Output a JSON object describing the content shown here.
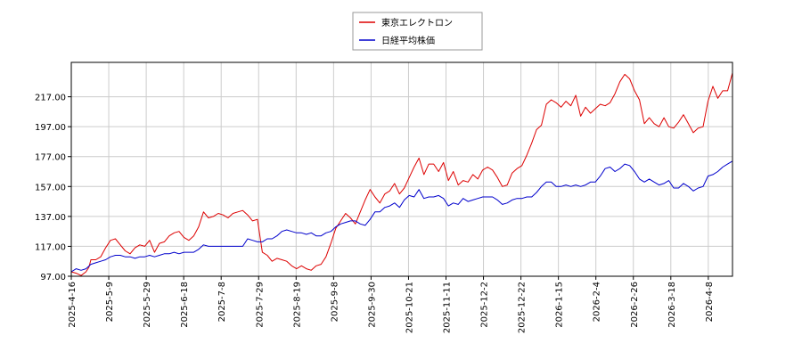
{
  "chart_data": {
    "type": "line",
    "title": "",
    "xlabel": "",
    "ylabel": "",
    "ylim": [
      97,
      240
    ],
    "yticks": [
      "97.00",
      "117.00",
      "137.00",
      "157.00",
      "177.00",
      "197.00",
      "217.00"
    ],
    "xticks": [
      "2025-4-16",
      "2025-5-9",
      "2025-5-29",
      "2025-6-18",
      "2025-7-8",
      "2025-7-29",
      "2025-8-19",
      "2025-9-8",
      "2025-9-30",
      "2025-10-21",
      "2025-11-11",
      "2025-12-2",
      "2025-12-22",
      "2026-1-15",
      "2026-2-4",
      "2026-2-26",
      "2026-3-18",
      "2026-4-8"
    ],
    "grid": true,
    "legend_position": "top-center",
    "series": [
      {
        "name": "東京エレクトロン",
        "color": "#dd0000",
        "points": [
          [
            0,
            100
          ],
          [
            0.5,
            99
          ],
          [
            1.0,
            97.5
          ],
          [
            1.5,
            100
          ],
          [
            1.8,
            103
          ],
          [
            2.0,
            108
          ],
          [
            2.5,
            108
          ],
          [
            3.0,
            110
          ],
          [
            3.5,
            116
          ],
          [
            4.0,
            121
          ],
          [
            4.5,
            122
          ],
          [
            5.0,
            118
          ],
          [
            5.5,
            114
          ],
          [
            6.0,
            112
          ],
          [
            6.5,
            116
          ],
          [
            7.0,
            118
          ],
          [
            7.5,
            117
          ],
          [
            8.0,
            121
          ],
          [
            8.5,
            113
          ],
          [
            9.0,
            119
          ],
          [
            9.5,
            120
          ],
          [
            10.0,
            124
          ],
          [
            10.5,
            126
          ],
          [
            11.0,
            127
          ],
          [
            11.5,
            123
          ],
          [
            12.0,
            121
          ],
          [
            12.5,
            124
          ],
          [
            13.0,
            130
          ],
          [
            13.5,
            140
          ],
          [
            14.0,
            136
          ],
          [
            14.5,
            137
          ],
          [
            15.0,
            139
          ],
          [
            15.5,
            138
          ],
          [
            16.0,
            136
          ],
          [
            16.5,
            139
          ],
          [
            17.0,
            140
          ],
          [
            17.5,
            141
          ],
          [
            18.0,
            138
          ],
          [
            18.5,
            134
          ],
          [
            19.0,
            135
          ],
          [
            19.5,
            113
          ],
          [
            20.0,
            111
          ],
          [
            20.5,
            107
          ],
          [
            21.0,
            109
          ],
          [
            21.5,
            108
          ],
          [
            22.0,
            107
          ],
          [
            22.5,
            104
          ],
          [
            23.0,
            102
          ],
          [
            23.5,
            104
          ],
          [
            24.0,
            102
          ],
          [
            24.5,
            101
          ],
          [
            25.0,
            104
          ],
          [
            25.5,
            105
          ],
          [
            26.0,
            110
          ],
          [
            26.5,
            119
          ],
          [
            27.0,
            129
          ],
          [
            27.5,
            134
          ],
          [
            28.0,
            139
          ],
          [
            28.5,
            136
          ],
          [
            29.0,
            132
          ],
          [
            29.5,
            140
          ],
          [
            30.0,
            148
          ],
          [
            30.5,
            155
          ],
          [
            31.0,
            150
          ],
          [
            31.5,
            146
          ],
          [
            32.0,
            152
          ],
          [
            32.5,
            154
          ],
          [
            33.0,
            159
          ],
          [
            33.5,
            152
          ],
          [
            34.0,
            156
          ],
          [
            34.5,
            163
          ],
          [
            35.0,
            170
          ],
          [
            35.5,
            176
          ],
          [
            36.0,
            165
          ],
          [
            36.5,
            172
          ],
          [
            37.0,
            172
          ],
          [
            37.5,
            167
          ],
          [
            38.0,
            173
          ],
          [
            38.5,
            161
          ],
          [
            39.0,
            167
          ],
          [
            39.5,
            158
          ],
          [
            40.0,
            161
          ],
          [
            40.5,
            160
          ],
          [
            41.0,
            165
          ],
          [
            41.5,
            162
          ],
          [
            42.0,
            168
          ],
          [
            42.5,
            170
          ],
          [
            43.0,
            168
          ],
          [
            43.5,
            163
          ],
          [
            44.0,
            157
          ],
          [
            44.5,
            158
          ],
          [
            45.0,
            166
          ],
          [
            45.5,
            169
          ],
          [
            46.0,
            171
          ],
          [
            46.5,
            178
          ],
          [
            47.0,
            186
          ],
          [
            47.5,
            195
          ],
          [
            48.0,
            198
          ],
          [
            48.5,
            212
          ],
          [
            49.0,
            215
          ],
          [
            49.5,
            213
          ],
          [
            50.0,
            210
          ],
          [
            50.5,
            214
          ],
          [
            51.0,
            211
          ],
          [
            51.5,
            218
          ],
          [
            52.0,
            204
          ],
          [
            52.5,
            210
          ],
          [
            53.0,
            206
          ],
          [
            53.5,
            209
          ],
          [
            54.0,
            212
          ],
          [
            54.5,
            211
          ],
          [
            55.0,
            213
          ],
          [
            55.5,
            219
          ],
          [
            56.0,
            227
          ],
          [
            56.5,
            232
          ],
          [
            57.0,
            229
          ],
          [
            57.5,
            221
          ],
          [
            58.0,
            215
          ],
          [
            58.5,
            199
          ],
          [
            59.0,
            203
          ],
          [
            59.5,
            199
          ],
          [
            60.0,
            197
          ],
          [
            60.5,
            203
          ],
          [
            61.0,
            197
          ],
          [
            61.5,
            196
          ],
          [
            62.0,
            200
          ],
          [
            62.5,
            205
          ],
          [
            63.0,
            199
          ],
          [
            63.5,
            193
          ],
          [
            64.0,
            196
          ],
          [
            64.5,
            197
          ],
          [
            65.0,
            214
          ],
          [
            65.5,
            224
          ],
          [
            66.0,
            216
          ],
          [
            66.5,
            221
          ],
          [
            67.0,
            221
          ],
          [
            67.5,
            233
          ]
        ]
      },
      {
        "name": "日経平均株価",
        "color": "#0000cc",
        "points": [
          [
            0,
            100
          ],
          [
            0.5,
            102
          ],
          [
            1.0,
            101
          ],
          [
            1.5,
            102
          ],
          [
            2.0,
            105
          ],
          [
            2.5,
            106
          ],
          [
            3.0,
            107
          ],
          [
            3.5,
            108
          ],
          [
            4.0,
            110
          ],
          [
            4.5,
            111
          ],
          [
            5.0,
            111
          ],
          [
            5.5,
            110
          ],
          [
            6.0,
            110
          ],
          [
            6.5,
            109
          ],
          [
            7.0,
            110
          ],
          [
            7.5,
            110
          ],
          [
            8.0,
            111
          ],
          [
            8.5,
            110
          ],
          [
            9.0,
            111
          ],
          [
            9.5,
            112
          ],
          [
            10.0,
            112
          ],
          [
            10.5,
            113
          ],
          [
            11.0,
            112
          ],
          [
            11.5,
            113
          ],
          [
            12.0,
            113
          ],
          [
            12.5,
            113
          ],
          [
            13.0,
            115
          ],
          [
            13.5,
            118
          ],
          [
            14.0,
            117
          ],
          [
            14.5,
            117
          ],
          [
            15.0,
            117
          ],
          [
            15.5,
            117
          ],
          [
            16.0,
            117
          ],
          [
            16.5,
            117
          ],
          [
            17.0,
            117
          ],
          [
            17.5,
            117
          ],
          [
            18.0,
            122
          ],
          [
            18.5,
            121
          ],
          [
            19.0,
            120
          ],
          [
            19.5,
            120
          ],
          [
            20.0,
            122
          ],
          [
            20.5,
            122
          ],
          [
            21.0,
            124
          ],
          [
            21.5,
            127
          ],
          [
            22.0,
            128
          ],
          [
            22.5,
            127
          ],
          [
            23.0,
            126
          ],
          [
            23.5,
            126
          ],
          [
            24.0,
            125
          ],
          [
            24.5,
            126
          ],
          [
            25.0,
            124
          ],
          [
            25.5,
            124
          ],
          [
            26.0,
            126
          ],
          [
            26.5,
            127
          ],
          [
            27.0,
            130
          ],
          [
            27.5,
            132
          ],
          [
            28.0,
            133
          ],
          [
            28.5,
            134
          ],
          [
            29.0,
            134
          ],
          [
            29.5,
            132
          ],
          [
            30.0,
            131
          ],
          [
            30.5,
            135
          ],
          [
            31.0,
            140
          ],
          [
            31.5,
            140
          ],
          [
            32.0,
            143
          ],
          [
            32.5,
            144
          ],
          [
            33.0,
            146
          ],
          [
            33.5,
            143
          ],
          [
            34.0,
            148
          ],
          [
            34.5,
            151
          ],
          [
            35.0,
            150
          ],
          [
            35.5,
            155
          ],
          [
            36.0,
            149
          ],
          [
            36.5,
            150
          ],
          [
            37.0,
            150
          ],
          [
            37.5,
            151
          ],
          [
            38.0,
            149
          ],
          [
            38.5,
            144
          ],
          [
            39.0,
            146
          ],
          [
            39.5,
            145
          ],
          [
            40.0,
            149
          ],
          [
            40.5,
            147
          ],
          [
            41.0,
            148
          ],
          [
            41.5,
            149
          ],
          [
            42.0,
            150
          ],
          [
            42.5,
            150
          ],
          [
            43.0,
            150
          ],
          [
            43.5,
            148
          ],
          [
            44.0,
            145
          ],
          [
            44.5,
            146
          ],
          [
            45.0,
            148
          ],
          [
            45.5,
            149
          ],
          [
            46.0,
            149
          ],
          [
            46.5,
            150
          ],
          [
            47.0,
            150
          ],
          [
            47.5,
            153
          ],
          [
            48.0,
            157
          ],
          [
            48.5,
            160
          ],
          [
            49.0,
            160
          ],
          [
            49.5,
            157
          ],
          [
            50.0,
            157
          ],
          [
            50.5,
            158
          ],
          [
            51.0,
            157
          ],
          [
            51.5,
            158
          ],
          [
            52.0,
            157
          ],
          [
            52.5,
            158
          ],
          [
            53.0,
            160
          ],
          [
            53.5,
            160
          ],
          [
            54.0,
            164
          ],
          [
            54.5,
            169
          ],
          [
            55.0,
            170
          ],
          [
            55.5,
            167
          ],
          [
            56.0,
            169
          ],
          [
            56.5,
            172
          ],
          [
            57.0,
            171
          ],
          [
            57.5,
            167
          ],
          [
            58.0,
            162
          ],
          [
            58.5,
            160
          ],
          [
            59.0,
            162
          ],
          [
            59.5,
            160
          ],
          [
            60.0,
            158
          ],
          [
            60.5,
            159
          ],
          [
            61.0,
            161
          ],
          [
            61.5,
            156
          ],
          [
            62.0,
            156
          ],
          [
            62.5,
            159
          ],
          [
            63.0,
            157
          ],
          [
            63.5,
            154
          ],
          [
            64.0,
            156
          ],
          [
            64.5,
            157
          ],
          [
            65.0,
            164
          ],
          [
            65.5,
            165
          ],
          [
            66.0,
            167
          ],
          [
            66.5,
            170
          ],
          [
            67.0,
            172
          ],
          [
            67.5,
            174
          ]
        ]
      }
    ]
  }
}
